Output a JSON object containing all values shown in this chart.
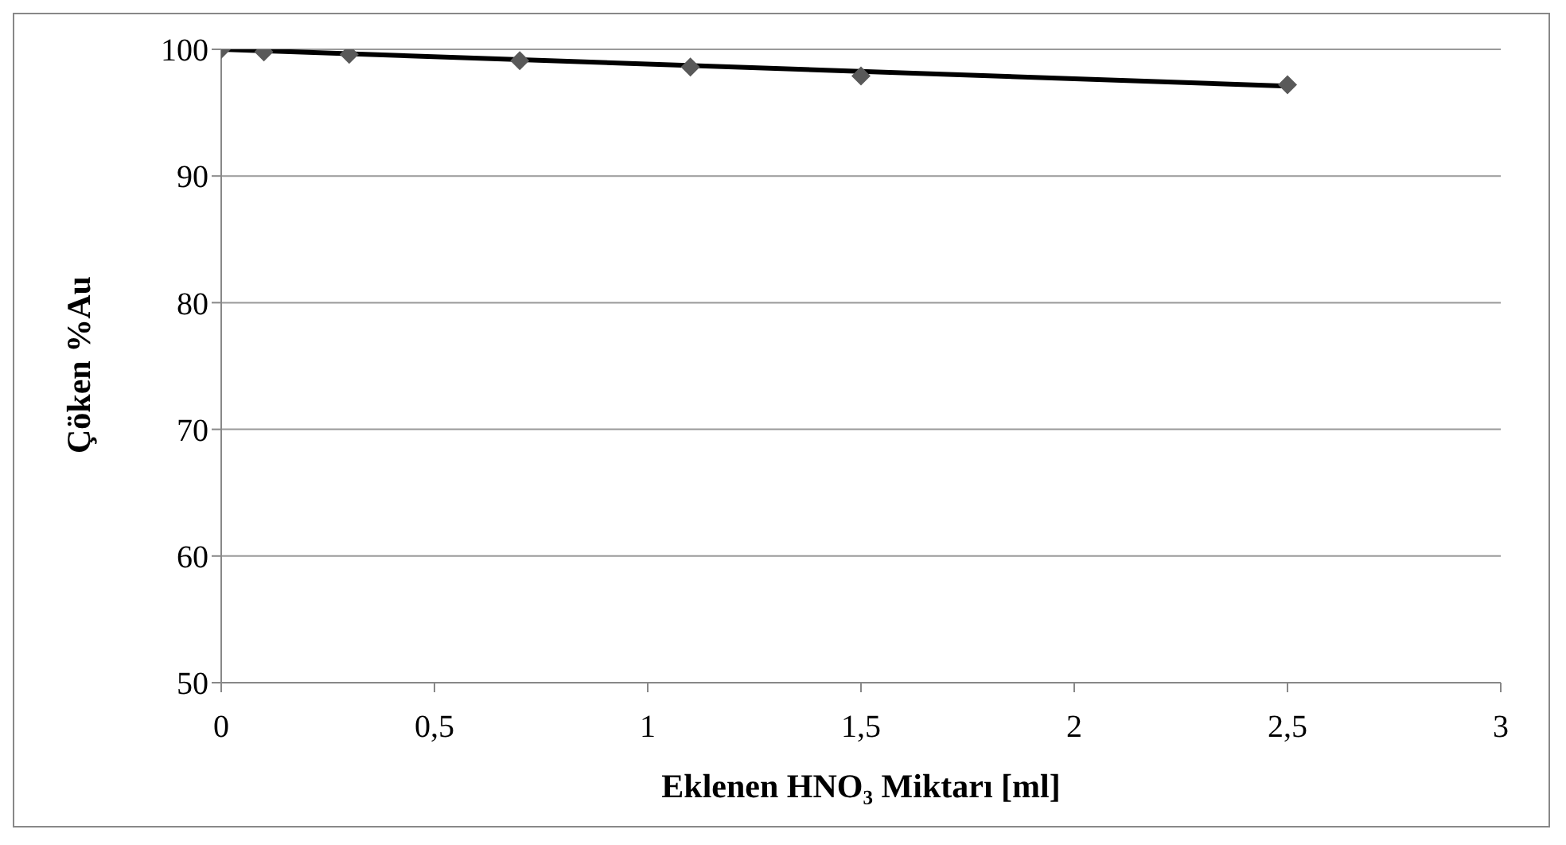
{
  "chart_data": {
    "type": "scatter",
    "xlabel": "Eklenen HNO₃ Miktarı [ml]",
    "ylabel": "Çöken %Au",
    "x": [
      0,
      0.1,
      0.3,
      0.7,
      1.1,
      1.5,
      2.5
    ],
    "series": [
      {
        "type": "scatter",
        "color": "#595959",
        "marker": "diamond",
        "values": [
          100,
          99.8,
          99.6,
          99.1,
          98.6,
          97.9,
          97.2
        ]
      },
      {
        "type": "line",
        "color": "#000000",
        "marker": "none",
        "x": [
          0,
          2.5
        ],
        "values": [
          100,
          97.1
        ]
      }
    ],
    "xlim": [
      0,
      3
    ],
    "xticks": [
      0,
      {
        "value": 0.5,
        "label": "0,5"
      },
      1,
      {
        "value": 1.5,
        "label": "1,5"
      },
      2,
      {
        "value": 2.5,
        "label": "2,5"
      },
      3
    ],
    "ylim": [
      50,
      100
    ],
    "yticks": [
      50,
      60,
      70,
      80,
      90,
      100
    ],
    "grid": "y",
    "legend": false
  }
}
